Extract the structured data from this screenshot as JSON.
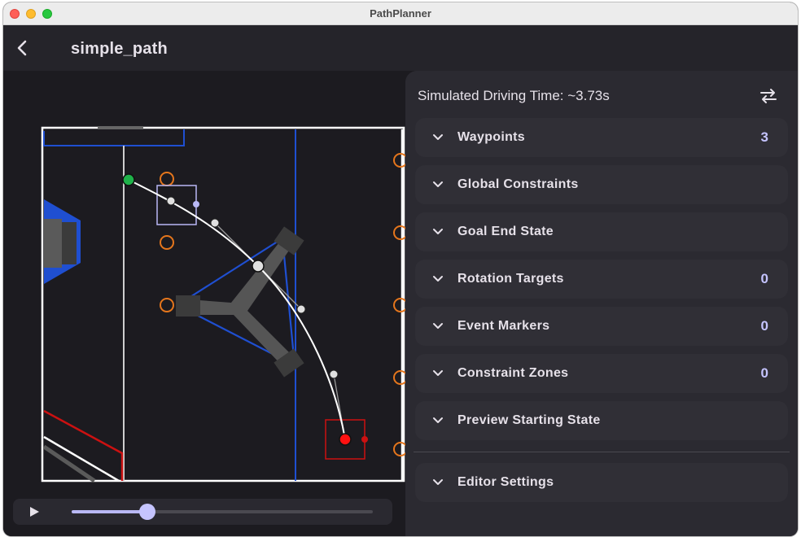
{
  "window": {
    "title": "PathPlanner"
  },
  "appbar": {
    "back_icon": "back-arrow-icon",
    "path_name": "simple_path"
  },
  "panel": {
    "sim_time": "Simulated Driving Time: ~3.73s",
    "swap_icon": "swap-horizontal-icon",
    "sections": [
      {
        "label": "Waypoints",
        "count": "3"
      },
      {
        "label": "Global Constraints",
        "count": ""
      },
      {
        "label": "Goal End State",
        "count": ""
      },
      {
        "label": "Rotation Targets",
        "count": "0"
      },
      {
        "label": "Event Markers",
        "count": "0"
      },
      {
        "label": "Constraint Zones",
        "count": "0"
      },
      {
        "label": "Preview Starting State",
        "count": ""
      }
    ],
    "editor_settings": {
      "label": "Editor Settings"
    }
  },
  "playback": {
    "play_icon": "play-icon",
    "progress": 0.25
  },
  "colors": {
    "accent": "#c5c4ff",
    "start_point": "#1fb24a",
    "end_point": "#ff1111",
    "field_lines": "#ffffff",
    "blue_alliance": "#1f4fd1",
    "red_alliance": "#cc1111",
    "cones": "#e5761c"
  }
}
